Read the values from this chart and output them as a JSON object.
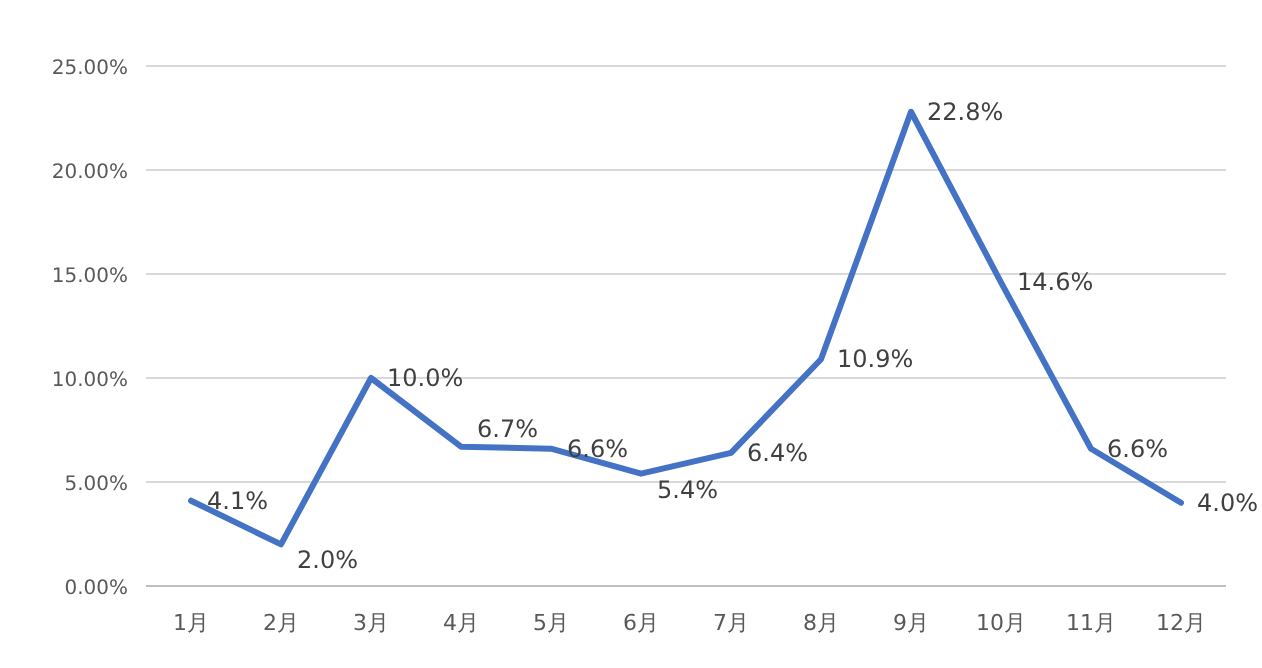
{
  "chart_data": {
    "type": "line",
    "categories": [
      "1月",
      "2月",
      "3月",
      "4月",
      "5月",
      "6月",
      "7月",
      "8月",
      "9月",
      "10月",
      "11月",
      "12月"
    ],
    "series": [
      {
        "color": "#4472c4",
        "values": [
          4.1,
          2.0,
          10.0,
          6.7,
          6.6,
          5.4,
          6.4,
          10.9,
          22.8,
          14.6,
          6.6,
          4.0
        ],
        "value_labels": [
          "4.1%",
          "2.0%",
          "10.0%",
          "6.7%",
          "6.6%",
          "5.4%",
          "6.4%",
          "10.9%",
          "22.8%",
          "14.6%",
          "6.6%",
          "4.0%"
        ]
      }
    ],
    "ylim": [
      0,
      25
    ],
    "yticks": [
      {
        "value": 0,
        "label": "0.00%"
      },
      {
        "value": 5,
        "label": "5.00%"
      },
      {
        "value": 10,
        "label": "10.00%"
      },
      {
        "value": 15,
        "label": "15.00%"
      },
      {
        "value": 20,
        "label": "20.00%"
      },
      {
        "value": 25,
        "label": "25.00%"
      }
    ],
    "grid": "y",
    "marker": "none",
    "line_style": "solid"
  }
}
